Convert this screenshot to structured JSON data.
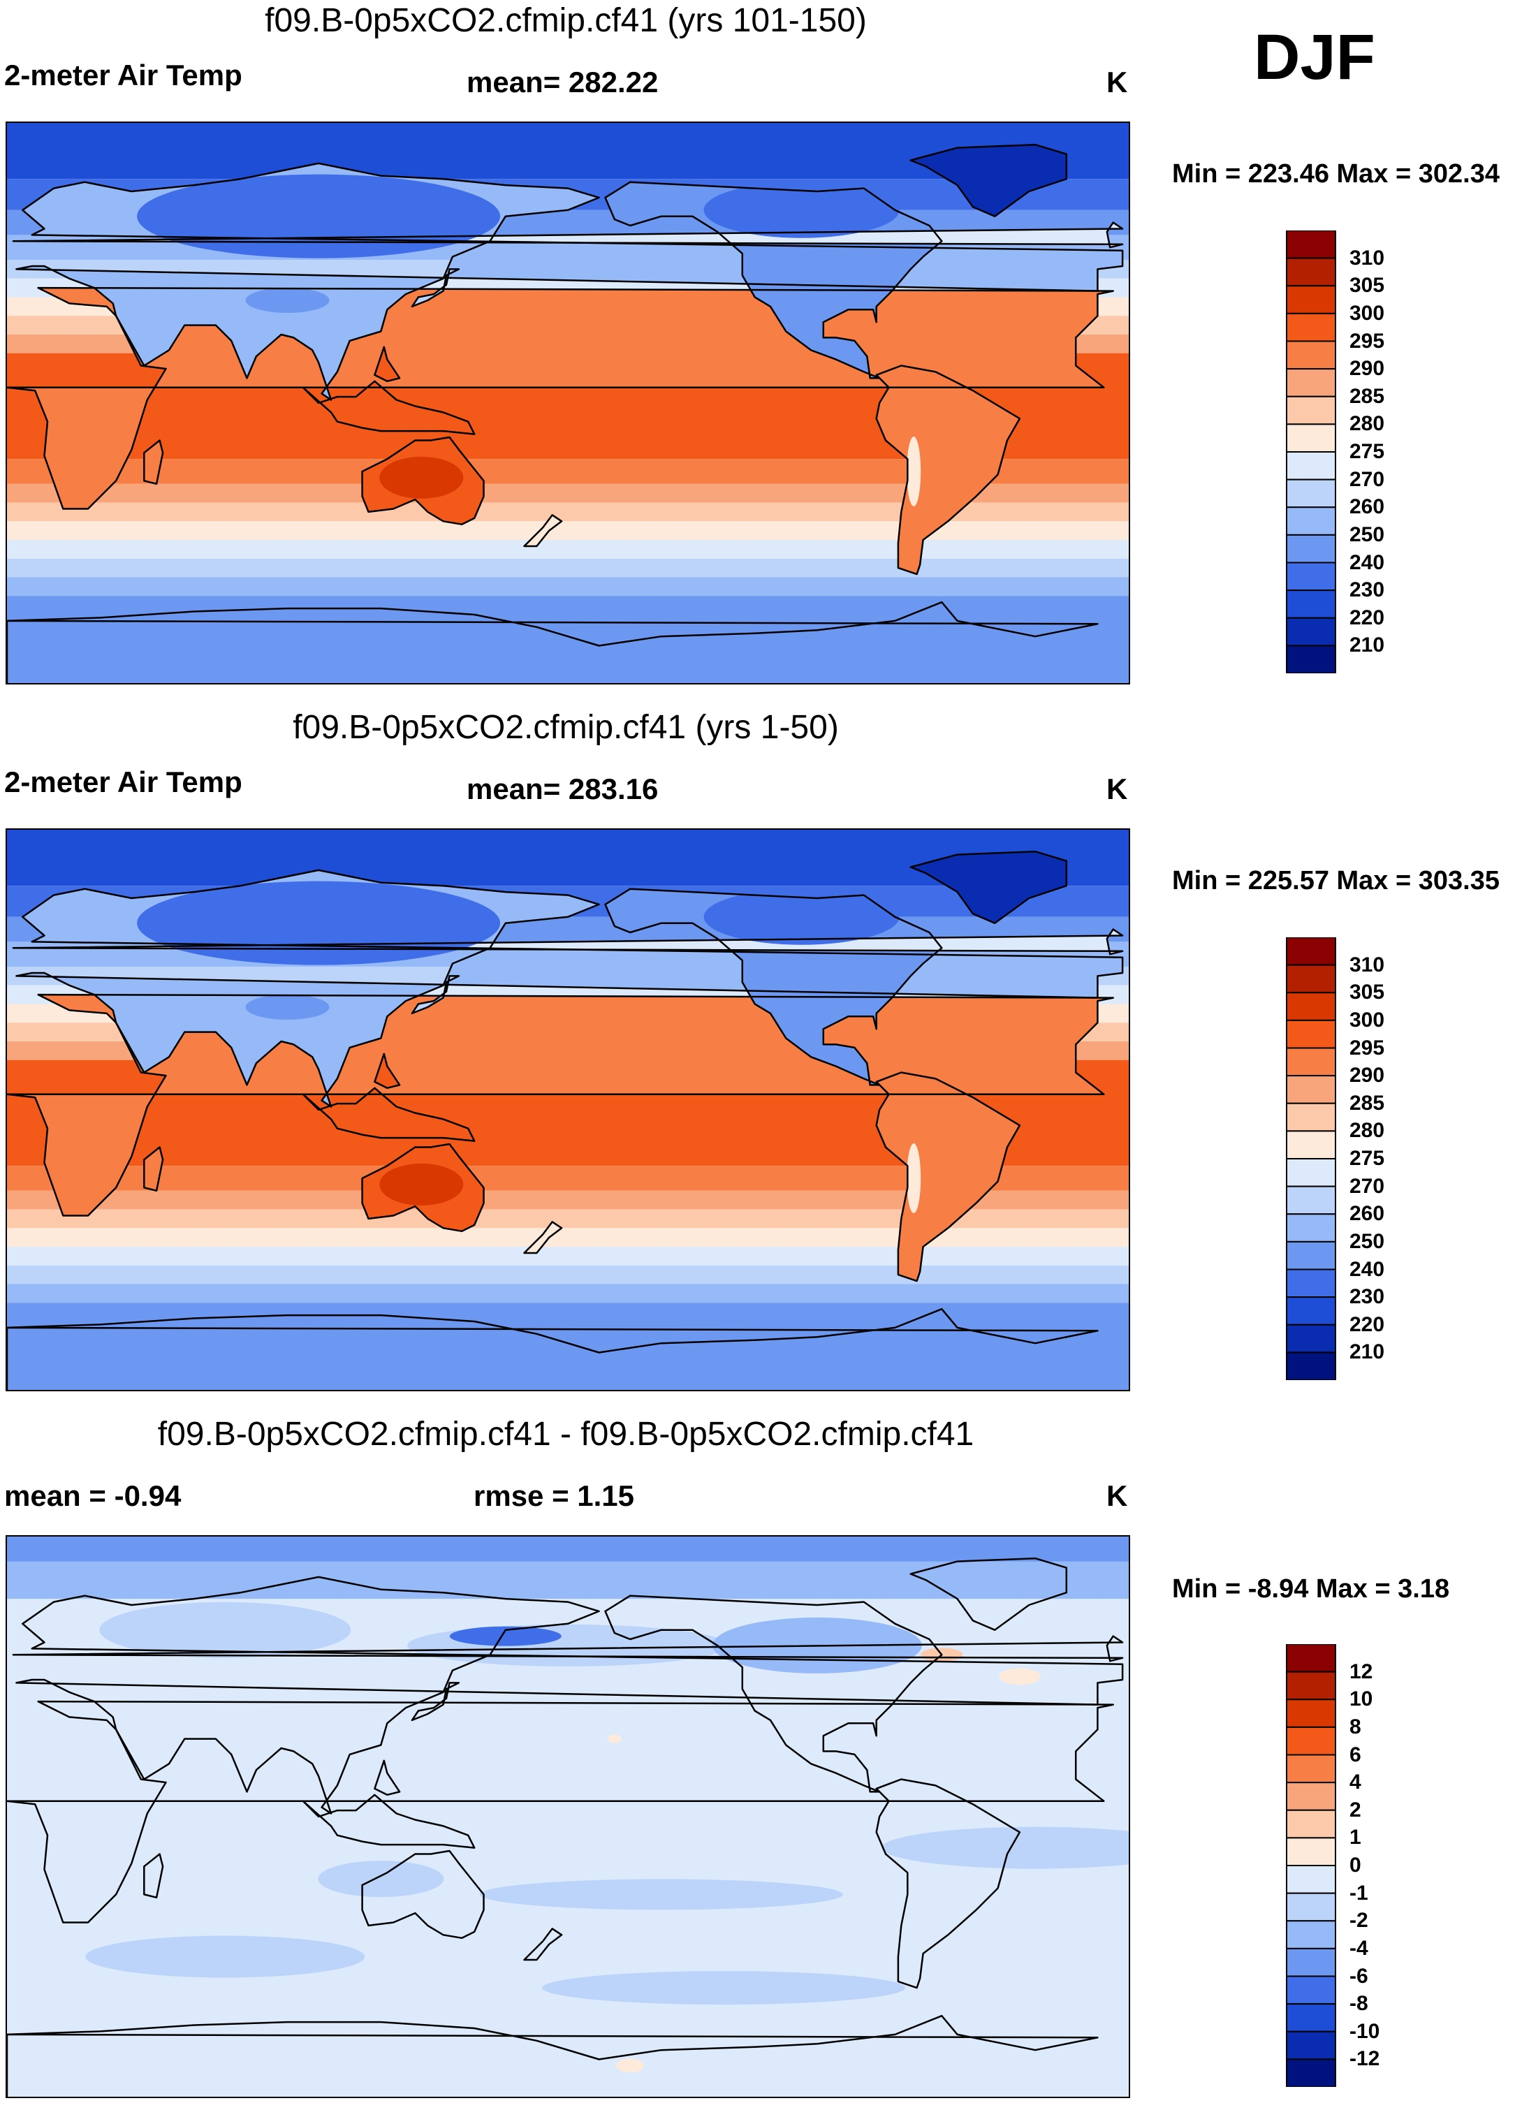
{
  "season": "DJF",
  "panels": [
    {
      "title": "f09.B-0p5xCO2.cfmip.cf41 (yrs 101-150)",
      "left_label": "2-meter Air Temp",
      "center_label": "mean= 282.22",
      "units": "K",
      "minmax": "Min = 223.46 Max = 302.34",
      "field": "absolute",
      "colorbar": {
        "labels": [
          "310",
          "305",
          "300",
          "295",
          "290",
          "285",
          "280",
          "275",
          "270",
          "260",
          "250",
          "240",
          "230",
          "220",
          "210"
        ],
        "colors": [
          "#8b0000",
          "#b22000",
          "#d93800",
          "#f35a1a",
          "#f77f45",
          "#f9a57c",
          "#fcc9aa",
          "#feeadb",
          "#dceafc",
          "#bcd4fa",
          "#96b9f7",
          "#6d98f1",
          "#3f6ee8",
          "#1f4ed6",
          "#0a2cb0",
          "#00127e"
        ]
      }
    },
    {
      "title": "f09.B-0p5xCO2.cfmip.cf41 (yrs 1-50)",
      "left_label": "2-meter Air Temp",
      "center_label": "mean= 283.16",
      "units": "K",
      "minmax": "Min = 225.57 Max = 303.35",
      "field": "absolute",
      "colorbar": {
        "labels": [
          "310",
          "305",
          "300",
          "295",
          "290",
          "285",
          "280",
          "275",
          "270",
          "260",
          "250",
          "240",
          "230",
          "220",
          "210"
        ],
        "colors": [
          "#8b0000",
          "#b22000",
          "#d93800",
          "#f35a1a",
          "#f77f45",
          "#f9a57c",
          "#fcc9aa",
          "#feeadb",
          "#dceafc",
          "#bcd4fa",
          "#96b9f7",
          "#6d98f1",
          "#3f6ee8",
          "#1f4ed6",
          "#0a2cb0",
          "#00127e"
        ]
      }
    },
    {
      "title": "f09.B-0p5xCO2.cfmip.cf41 - f09.B-0p5xCO2.cfmip.cf41",
      "left_label": "mean =  -0.94",
      "center_label": "rmse =   1.15",
      "units": "K",
      "minmax": "Min =  -8.94 Max =   3.18",
      "field": "difference",
      "colorbar": {
        "labels": [
          "12",
          "10",
          "8",
          "6",
          "4",
          "2",
          "1",
          "0",
          "-1",
          "-2",
          "-4",
          "-6",
          "-8",
          "-10",
          "-12"
        ],
        "colors": [
          "#8b0000",
          "#b22000",
          "#d93800",
          "#f35a1a",
          "#f77f45",
          "#f9a57c",
          "#fcc9aa",
          "#feeadb",
          "#dceafc",
          "#bcd4fa",
          "#96b9f7",
          "#6d98f1",
          "#3f6ee8",
          "#1f4ed6",
          "#0a2cb0",
          "#00127e"
        ]
      }
    }
  ]
}
